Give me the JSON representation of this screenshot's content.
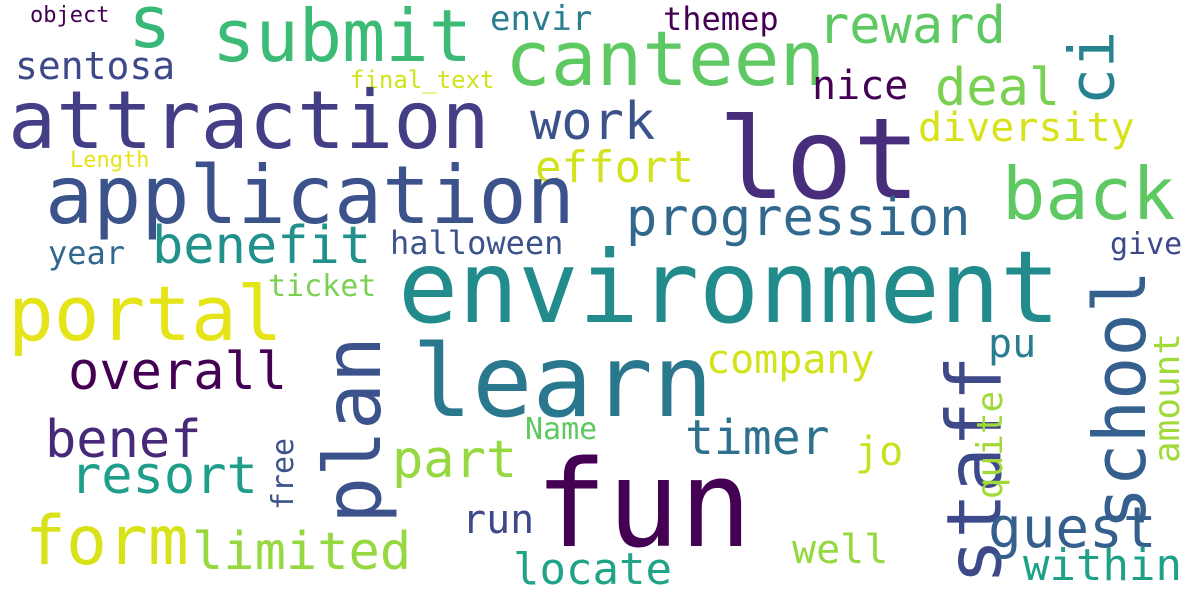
{
  "words": [
    {
      "text": "object",
      "color": "#440154"
    },
    {
      "text": "s",
      "color": "#37b878"
    },
    {
      "text": "submit",
      "color": "#3bbb75"
    },
    {
      "text": "envir",
      "color": "#287d8e"
    },
    {
      "text": "themep",
      "color": "#440154"
    },
    {
      "text": "reward",
      "color": "#5ec962"
    },
    {
      "text": "ci",
      "color": "#26828e"
    },
    {
      "text": "sentosa",
      "color": "#3e4989"
    },
    {
      "text": "canteen",
      "color": "#5ec962"
    },
    {
      "text": "final_text",
      "color": "#d2e21b"
    },
    {
      "text": "nice",
      "color": "#440154"
    },
    {
      "text": "deal",
      "color": "#7ad151"
    },
    {
      "text": "attraction",
      "color": "#433e85"
    },
    {
      "text": "work",
      "color": "#3b528b"
    },
    {
      "text": "lot",
      "color": "#472d7b"
    },
    {
      "text": "diversity",
      "color": "#d8e219"
    },
    {
      "text": "Length",
      "color": "#e5e419"
    },
    {
      "text": "effort",
      "color": "#d2e21b"
    },
    {
      "text": "application",
      "color": "#3b528b"
    },
    {
      "text": "back",
      "color": "#5ec962"
    },
    {
      "text": "progression",
      "color": "#31688e"
    },
    {
      "text": "benefit",
      "color": "#21918c"
    },
    {
      "text": "halloween",
      "color": "#3b528b"
    },
    {
      "text": "year",
      "color": "#31688e"
    },
    {
      "text": "give",
      "color": "#3e4989"
    },
    {
      "text": "ticket",
      "color": "#7ad151"
    },
    {
      "text": "environment",
      "color": "#228c8d"
    },
    {
      "text": "portal",
      "color": "#e5e419"
    },
    {
      "text": "school",
      "color": "#35608d"
    },
    {
      "text": "pu",
      "color": "#287d8e"
    },
    {
      "text": "plan",
      "color": "#3b528b"
    },
    {
      "text": "learn",
      "color": "#2a788e"
    },
    {
      "text": "staff",
      "color": "#3e4989"
    },
    {
      "text": "amount",
      "color": "#a0da39"
    },
    {
      "text": "overall",
      "color": "#440154"
    },
    {
      "text": "company",
      "color": "#d2e21b"
    },
    {
      "text": "quite",
      "color": "#a0da39"
    },
    {
      "text": "benef",
      "color": "#482878"
    },
    {
      "text": "Name",
      "color": "#5ec962"
    },
    {
      "text": "timer",
      "color": "#2c728e"
    },
    {
      "text": "jo",
      "color": "#c8e020"
    },
    {
      "text": "part",
      "color": "#95d840"
    },
    {
      "text": "resort",
      "color": "#1f9e89"
    },
    {
      "text": "free",
      "color": "#3b528b"
    },
    {
      "text": "fun",
      "color": "#440154"
    },
    {
      "text": "guest",
      "color": "#35608d"
    },
    {
      "text": "run",
      "color": "#3e4989"
    },
    {
      "text": "form",
      "color": "#d8e219"
    },
    {
      "text": "limited",
      "color": "#95d840"
    },
    {
      "text": "well",
      "color": "#95d840"
    },
    {
      "text": "locate",
      "color": "#20a386"
    },
    {
      "text": "within",
      "color": "#1fa187"
    }
  ]
}
